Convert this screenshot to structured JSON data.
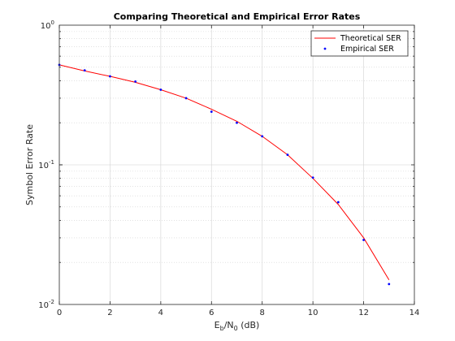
{
  "chart_data": {
    "type": "line",
    "title": "Comparing Theoretical and Empirical Error Rates",
    "xlabel": {
      "base": "E",
      "sub1": "b",
      "mid": "/N",
      "sub2": "0",
      "tail": " (dB)"
    },
    "ylabel": "Symbol Error Rate",
    "xlim": [
      0,
      14
    ],
    "ylim": [
      0.01,
      1
    ],
    "yscale": "log",
    "grid": true,
    "legend_position": "top-right",
    "x_ticks": [
      0,
      2,
      4,
      6,
      8,
      10,
      12,
      14
    ],
    "x_tick_labels": [
      "0",
      "2",
      "4",
      "6",
      "8",
      "10",
      "12",
      "14"
    ],
    "y_ticks": [
      {
        "value": 0.01,
        "base": "10",
        "exp": "-2"
      },
      {
        "value": 0.1,
        "base": "10",
        "exp": "-1"
      },
      {
        "value": 1,
        "base": "10",
        "exp": "0"
      }
    ],
    "series": [
      {
        "name": "Theoretical SER",
        "kind": "line",
        "color": "#ff0000",
        "x": [
          0,
          1,
          2,
          3,
          4,
          5,
          6,
          7,
          8,
          9,
          10,
          11,
          12,
          13
        ],
        "y": [
          0.52,
          0.47,
          0.43,
          0.39,
          0.345,
          0.3,
          0.25,
          0.205,
          0.16,
          0.118,
          0.08,
          0.052,
          0.03,
          0.015
        ]
      },
      {
        "name": "Empirical SER",
        "kind": "scatter",
        "color": "#0000ff",
        "x": [
          0,
          1,
          2,
          3,
          4,
          5,
          6,
          7,
          8,
          9,
          10,
          11,
          12,
          13
        ],
        "y": [
          0.52,
          0.475,
          0.43,
          0.395,
          0.345,
          0.3,
          0.24,
          0.2,
          0.16,
          0.118,
          0.081,
          0.054,
          0.029,
          0.014
        ]
      }
    ]
  }
}
